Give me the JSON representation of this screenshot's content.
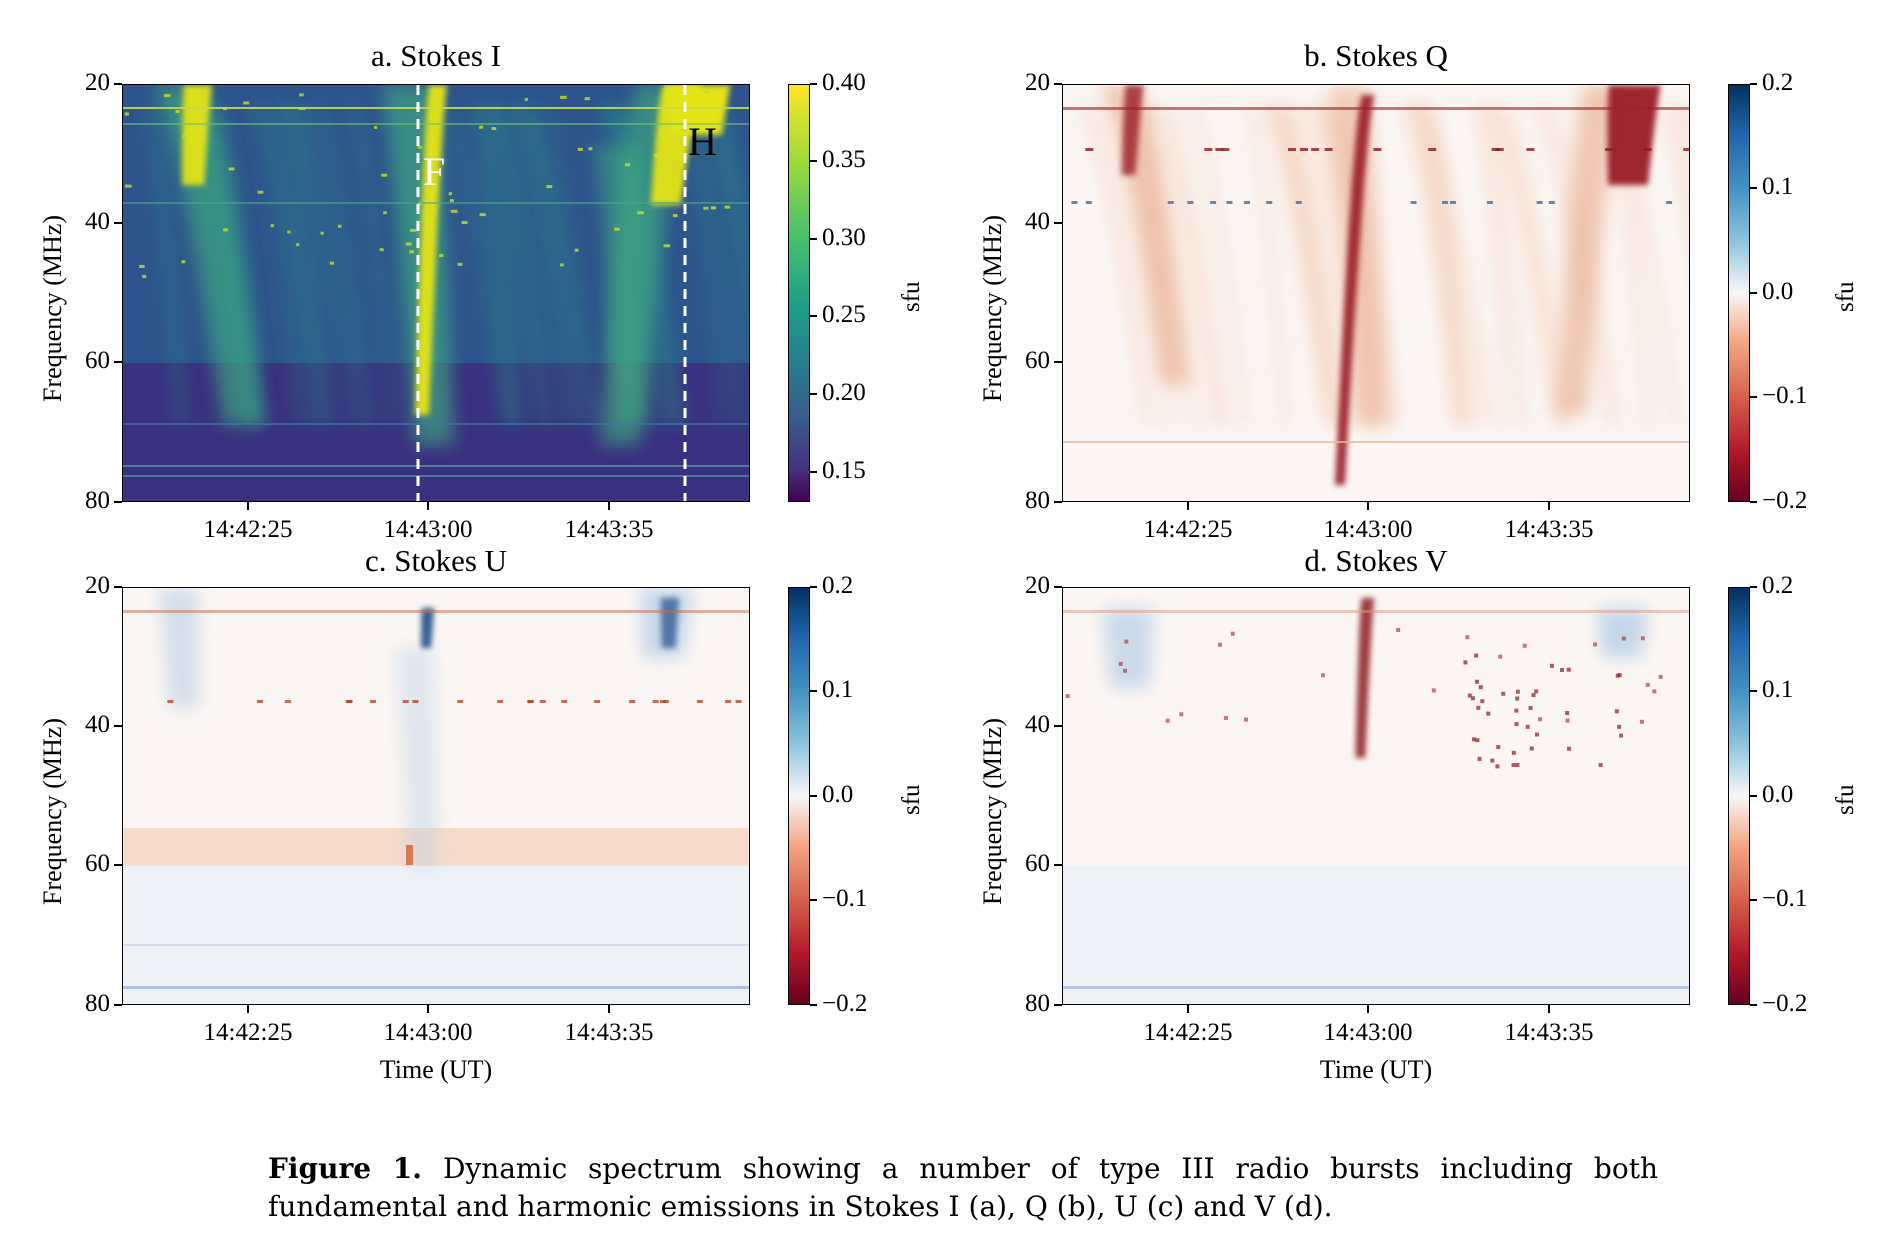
{
  "caption": {
    "label": "Figure 1.",
    "text": "Dynamic spectrum showing a number of type III radio bursts including both fundamental and harmonic emissions in Stokes I (a), Q (b), U (c) and V (d)."
  },
  "chart_data": [
    {
      "type": "heatmap",
      "title": "a. Stokes I",
      "xlabel": "",
      "ylabel": "Frequency (MHz)",
      "xticks": [
        "14:42:25",
        "14:43:00",
        "14:43:35"
      ],
      "yticks": [
        "20",
        "40",
        "60",
        "80"
      ],
      "ylim": [
        80,
        20
      ],
      "colormap": "viridis",
      "colorbar": {
        "label": "sfu",
        "ticks": [
          "0.40",
          "0.35",
          "0.30",
          "0.25",
          "0.20",
          "0.15"
        ],
        "range": [
          0.13,
          0.4
        ]
      },
      "annotations": [
        {
          "text": "F"
        },
        {
          "text": "H"
        }
      ],
      "markers": [
        "dashed white vertical line at F",
        "dashed white vertical line at H"
      ]
    },
    {
      "type": "heatmap",
      "title": "b. Stokes Q",
      "xlabel": "",
      "ylabel": "Frequency (MHz)",
      "xticks": [
        "14:42:25",
        "14:43:00",
        "14:43:35"
      ],
      "yticks": [
        "20",
        "40",
        "60",
        "80"
      ],
      "ylim": [
        80,
        20
      ],
      "colormap": "RdBu",
      "colorbar": {
        "label": "sfu",
        "ticks": [
          "0.2",
          "0.1",
          "0.0",
          "−0.1",
          "−0.2"
        ],
        "range": [
          -0.2,
          0.2
        ]
      }
    },
    {
      "type": "heatmap",
      "title": "c. Stokes U",
      "xlabel": "Time (UT)",
      "ylabel": "Frequency (MHz)",
      "xticks": [
        "14:42:25",
        "14:43:00",
        "14:43:35"
      ],
      "yticks": [
        "20",
        "40",
        "60",
        "80"
      ],
      "ylim": [
        80,
        20
      ],
      "colormap": "RdBu",
      "colorbar": {
        "label": "sfu",
        "ticks": [
          "0.2",
          "0.1",
          "0.0",
          "−0.1",
          "−0.2"
        ],
        "range": [
          -0.2,
          0.2
        ]
      }
    },
    {
      "type": "heatmap",
      "title": "d. Stokes V",
      "xlabel": "Time (UT)",
      "ylabel": "Frequency (MHz)",
      "xticks": [
        "14:42:25",
        "14:43:00",
        "14:43:35"
      ],
      "yticks": [
        "20",
        "40",
        "60",
        "80"
      ],
      "ylim": [
        80,
        20
      ],
      "colormap": "RdBu",
      "colorbar": {
        "label": "sfu",
        "ticks": [
          "0.2",
          "0.1",
          "0.0",
          "−0.1",
          "−0.2"
        ],
        "range": [
          -0.2,
          0.2
        ]
      }
    }
  ]
}
